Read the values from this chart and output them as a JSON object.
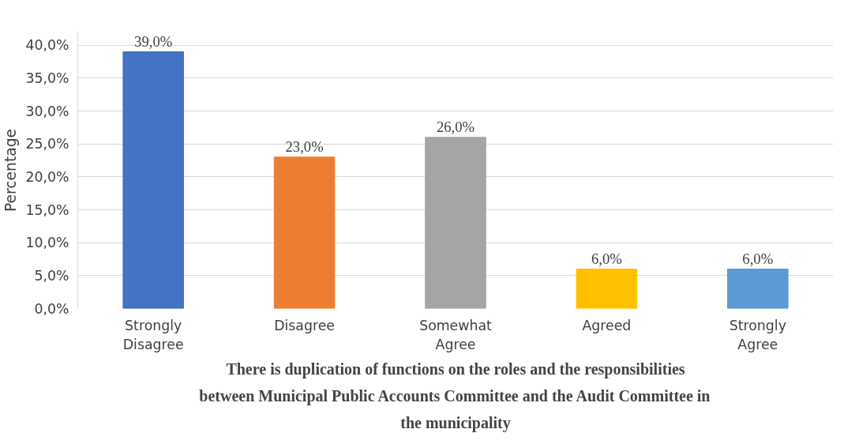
{
  "chart_data": {
    "type": "bar",
    "categories": [
      "Strongly Disagree",
      "Disagree",
      "Somewhat Agree",
      "Agreed",
      "Strongly Agree"
    ],
    "values": [
      39,
      23,
      26,
      6,
      6
    ],
    "colors": [
      "#4472c4",
      "#ed7d31",
      "#a5a5a5",
      "#ffc000",
      "#5b9bd5"
    ],
    "value_labels": [
      "39,0%",
      "23,0%",
      "26,0%",
      "6,0%",
      "6,0%"
    ],
    "ylabel": "Percentage",
    "xlabel": "There is duplication of functions on the roles and the responsibilities between Municipal Public Accounts Committee and the Audit Committee in the municipality",
    "ylim": [
      0,
      42
    ],
    "yticks": [
      {
        "value": 0,
        "label": "0,0%"
      },
      {
        "value": 5,
        "label": "5,0%"
      },
      {
        "value": 10,
        "label": "10,0%"
      },
      {
        "value": 15,
        "label": "15,0%"
      },
      {
        "value": 20,
        "label": "20,0%"
      },
      {
        "value": 25,
        "label": "25,0%"
      },
      {
        "value": 30,
        "label": "30,0%"
      },
      {
        "value": 35,
        "label": "35,0%"
      },
      {
        "value": 40,
        "label": "40,0%"
      }
    ],
    "grid": "y"
  }
}
